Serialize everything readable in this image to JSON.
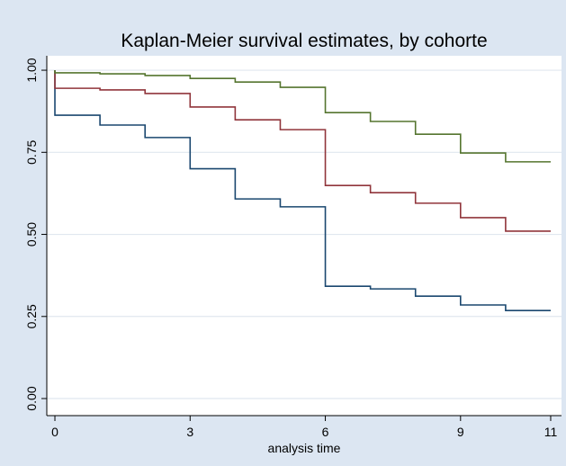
{
  "chart_data": {
    "type": "step",
    "title": "Kaplan-Meier survival estimates, by cohorte",
    "x_label": "analysis time",
    "x": [
      0,
      0,
      1,
      2,
      3,
      4,
      5,
      6,
      7,
      8,
      9,
      10,
      11
    ],
    "series": [
      {
        "color": "#1a476f",
        "values": [
          1,
          0.863,
          0.833,
          0.795,
          0.7,
          0.608,
          0.584,
          0.342,
          0.334,
          0.312,
          0.285,
          0.268,
          0.268
        ]
      },
      {
        "color": "#90353b",
        "values": [
          1,
          0.945,
          0.94,
          0.929,
          0.888,
          0.849,
          0.819,
          0.649,
          0.627,
          0.595,
          0.551,
          0.51,
          0.51
        ]
      },
      {
        "color": "#55752f",
        "values": [
          1,
          0.992,
          0.989,
          0.984,
          0.975,
          0.964,
          0.948,
          0.871,
          0.844,
          0.805,
          0.748,
          0.721,
          0.721
        ]
      }
    ],
    "xlim": [
      -0.18,
      11.24
    ],
    "ylim": [
      -0.052,
      1.044
    ],
    "xticks": [
      0,
      3,
      6,
      9,
      11
    ],
    "yticks": [
      {
        "value": 0,
        "label": "0.00"
      },
      {
        "value": 0.25,
        "label": "0.25"
      },
      {
        "value": 0.5,
        "label": "0.50"
      },
      {
        "value": 0.75,
        "label": "0.75"
      },
      {
        "value": 1,
        "label": "1.00"
      }
    ],
    "grid": true
  }
}
